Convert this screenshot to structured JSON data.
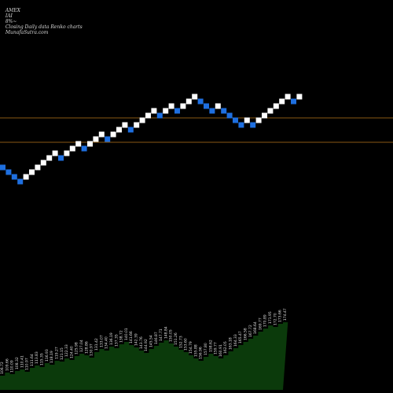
{
  "header": {
    "exchange": "AMEX",
    "symbol": "IAI",
    "pct": "8%~",
    "chart_desc": "Closing Daily data Renko charts",
    "site": "MunafaSutra.com"
  },
  "colors": {
    "background": "#000000",
    "up_brick": "#ffffff",
    "down_brick": "#1e6fe0",
    "hline": "#b8741a",
    "volume_fill": "#0b3a0b",
    "volume_text": "#e0e0e0",
    "header_text": "#d8d8d8"
  },
  "chart_data": {
    "type": "renko",
    "brick_direction": [
      "down",
      "down",
      "down",
      "down",
      "up",
      "up",
      "up",
      "up",
      "up",
      "up",
      "down",
      "up",
      "up",
      "up",
      "down",
      "up",
      "up",
      "up",
      "down",
      "up",
      "up",
      "up",
      "down",
      "up",
      "up",
      "up",
      "up",
      "down",
      "up",
      "up",
      "down",
      "up",
      "up",
      "up",
      "down",
      "down",
      "down",
      "up",
      "down",
      "down",
      "down",
      "down",
      "up",
      "down",
      "up",
      "up",
      "up",
      "up",
      "up",
      "up",
      "down",
      "up"
    ],
    "y_range": [
      0,
      500
    ],
    "brick_levels": [
      287,
      281,
      275,
      269,
      275,
      281,
      287,
      293,
      299,
      305,
      299,
      305,
      311,
      317,
      311,
      317,
      323,
      329,
      323,
      329,
      335,
      341,
      335,
      341,
      347,
      353,
      359,
      353,
      359,
      365,
      359,
      365,
      371,
      377,
      371,
      365,
      359,
      365,
      359,
      353,
      347,
      341,
      347,
      341,
      347,
      353,
      359,
      365,
      371,
      377,
      371,
      377
    ],
    "hlines": [
      350,
      319
    ],
    "volume_labels": [
      "106.72",
      "109.66",
      "110.09",
      "108.32",
      "110.41",
      "110.97",
      "111.64",
      "113.83",
      "115.35",
      "116.93",
      "118.19",
      "119.27",
      "121.15",
      "122.33",
      "124.40",
      "125.98",
      "127.04",
      "128.86",
      "130.97",
      "131.42",
      "133.07",
      "134.40",
      "136.19",
      "137.35",
      "138.72",
      "140.01",
      "141.66",
      "142.39",
      "143.76",
      "144.92",
      "145.54",
      "146.87",
      "147.71",
      "148.84",
      "150.05",
      "151.26",
      "152.73",
      "153.60",
      "154.79",
      "155.88",
      "156.96",
      "157.80",
      "158.62",
      "159.77",
      "160.91",
      "162.05",
      "163.18",
      "164.33",
      "165.47",
      "166.58",
      "167.72",
      "168.64",
      "169.77",
      "170.89",
      "171.95",
      "172.70",
      "173.66",
      "174.47"
    ],
    "volume_levels": [
      18,
      22,
      20,
      24,
      26,
      23,
      28,
      31,
      29,
      34,
      32,
      37,
      36,
      40,
      38,
      43,
      46,
      44,
      41,
      48,
      52,
      50,
      55,
      53,
      58,
      61,
      57,
      54,
      50,
      47,
      52,
      56,
      60,
      63,
      59,
      55,
      51,
      48,
      44,
      40,
      37,
      42,
      46,
      43,
      40,
      44,
      49,
      53,
      57,
      61,
      65,
      69,
      74,
      78,
      82,
      80,
      84,
      86
    ]
  }
}
